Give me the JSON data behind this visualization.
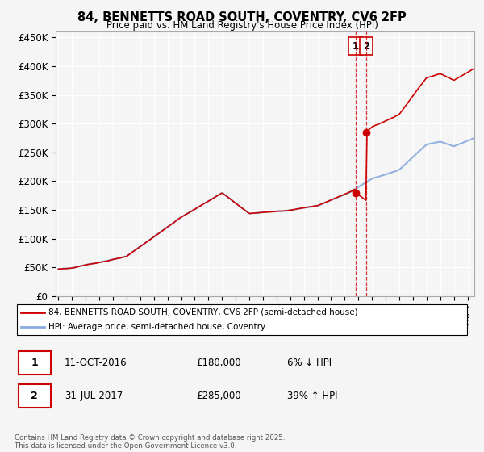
{
  "title": "84, BENNETTS ROAD SOUTH, COVENTRY, CV6 2FP",
  "subtitle": "Price paid vs. HM Land Registry's House Price Index (HPI)",
  "ylabel_ticks": [
    "£0",
    "£50K",
    "£100K",
    "£150K",
    "£200K",
    "£250K",
    "£300K",
    "£350K",
    "£400K",
    "£450K"
  ],
  "ytick_values": [
    0,
    50000,
    100000,
    150000,
    200000,
    250000,
    300000,
    350000,
    400000,
    450000
  ],
  "ylim": [
    0,
    460000
  ],
  "xlim_start": 1994.8,
  "xlim_end": 2025.5,
  "purchase1_year": 2016.78,
  "purchase1_price": 180000,
  "purchase2_year": 2017.58,
  "purchase2_price": 285000,
  "legend_line1": "84, BENNETTS ROAD SOUTH, COVENTRY, CV6 2FP (semi-detached house)",
  "legend_line2": "HPI: Average price, semi-detached house, Coventry",
  "table_row1_label": "1",
  "table_row1_date": "11-OCT-2016",
  "table_row1_price": "£180,000",
  "table_row1_info": "6% ↓ HPI",
  "table_row2_label": "2",
  "table_row2_date": "31-JUL-2017",
  "table_row2_price": "£285,000",
  "table_row2_info": "39% ↑ HPI",
  "footnote": "Contains HM Land Registry data © Crown copyright and database right 2025.\nThis data is licensed under the Open Government Licence v3.0.",
  "line_color_property": "#cc0000",
  "line_color_hpi": "#88aadd",
  "vline_color": "#cc0000",
  "background_color": "#f5f5f5",
  "grid_color": "#ffffff"
}
